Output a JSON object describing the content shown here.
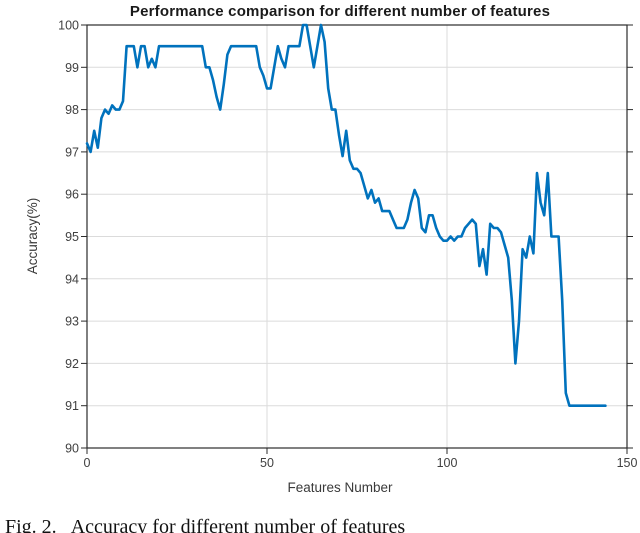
{
  "figure": {
    "caption_tag": "Fig. 2.",
    "caption_text": "Accuracy for different number of features"
  },
  "chart_data": {
    "type": "line",
    "title": "Performance comparison for different number of features",
    "xlabel": "Features Number",
    "ylabel": "Accuracy(%)",
    "xlim": [
      0,
      150
    ],
    "ylim": [
      90,
      100
    ],
    "grid": true,
    "legend": "none",
    "xtick_labels": [
      "0",
      "50",
      "100",
      "150"
    ],
    "ytick_labels": [
      "90",
      "91",
      "92",
      "93",
      "94",
      "95",
      "96",
      "97",
      "98",
      "99",
      "100"
    ],
    "x_start": 0,
    "x_step": 1,
    "series": [
      {
        "name": "accuracy",
        "color": "#0072BD",
        "values": [
          97.2,
          97.0,
          97.5,
          97.1,
          97.8,
          98.0,
          97.9,
          98.1,
          98.0,
          98.0,
          98.2,
          99.5,
          99.5,
          99.5,
          99.0,
          99.5,
          99.5,
          99.0,
          99.2,
          99.0,
          99.5,
          99.5,
          99.5,
          99.5,
          99.5,
          99.5,
          99.5,
          99.5,
          99.5,
          99.5,
          99.5,
          99.5,
          99.5,
          99.0,
          99.0,
          98.7,
          98.3,
          98.0,
          98.6,
          99.3,
          99.5,
          99.5,
          99.5,
          99.5,
          99.5,
          99.5,
          99.5,
          99.5,
          99.0,
          98.8,
          98.5,
          98.5,
          99.0,
          99.5,
          99.2,
          99.0,
          99.5,
          99.5,
          99.5,
          99.5,
          100.0,
          100.0,
          99.5,
          99.0,
          99.5,
          100.0,
          99.6,
          98.5,
          98.0,
          98.0,
          97.4,
          96.9,
          97.5,
          96.8,
          96.6,
          96.6,
          96.5,
          96.2,
          95.9,
          96.1,
          95.8,
          95.9,
          95.6,
          95.6,
          95.6,
          95.4,
          95.2,
          95.2,
          95.2,
          95.4,
          95.8,
          96.1,
          95.9,
          95.2,
          95.1,
          95.5,
          95.5,
          95.2,
          95.0,
          94.9,
          94.9,
          95.0,
          94.9,
          95.0,
          95.0,
          95.2,
          95.3,
          95.4,
          95.3,
          94.3,
          94.7,
          94.1,
          95.3,
          95.2,
          95.2,
          95.1,
          94.8,
          94.5,
          93.5,
          92.0,
          93.0,
          94.7,
          94.5,
          95.0,
          94.6,
          96.5,
          95.8,
          95.5,
          96.5,
          95.0,
          95.0,
          95.0,
          93.5,
          91.3,
          91.0,
          91.0,
          91.0,
          91.0,
          91.0,
          91.0,
          91.0,
          91.0,
          91.0,
          91.0,
          91.0
        ]
      }
    ]
  }
}
